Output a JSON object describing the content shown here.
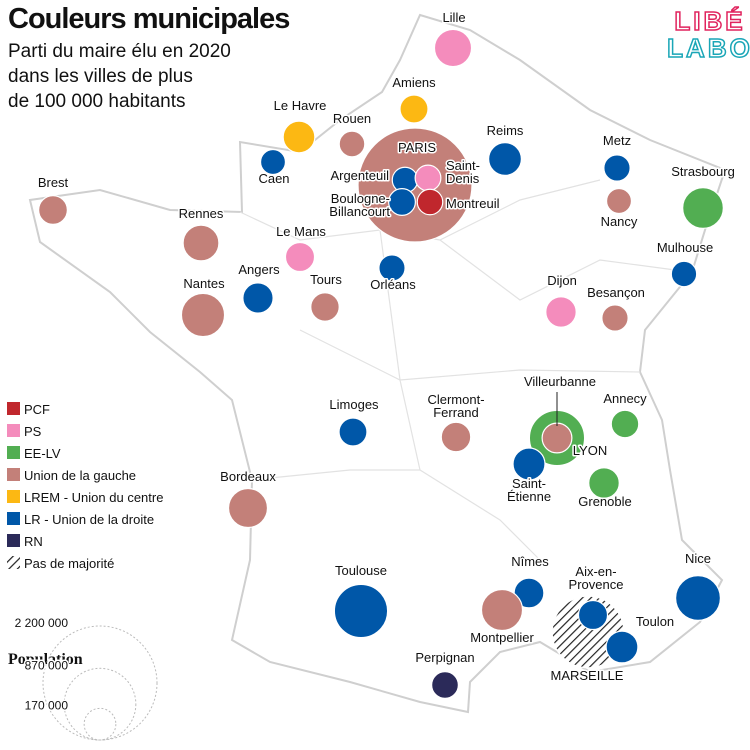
{
  "header": {
    "title": "Couleurs municipales",
    "subtitle": [
      "Parti du maire élu en 2020",
      "dans les villes de plus",
      "de 100 000 habitants"
    ],
    "logo": [
      "LIBÉ",
      "LABO"
    ]
  },
  "parties": [
    {
      "name": "PCF",
      "color": "#c0272d"
    },
    {
      "name": "PS",
      "color": "#f48cbc"
    },
    {
      "name": "EE-LV",
      "color": "#52ae52"
    },
    {
      "name": "Union de la gauche",
      "color": "#c38079"
    },
    {
      "name": "LREM - Union du centre",
      "color": "#fcb813"
    },
    {
      "name": "LR - Union de la droite",
      "color": "#0057a8"
    },
    {
      "name": "RN",
      "color": "#2b2a59"
    },
    {
      "name": "Pas de majorité",
      "color": "#222222",
      "pattern": "hatch"
    }
  ],
  "population_legend": {
    "title": "Population",
    "sizes": [
      {
        "value": 2200000,
        "label": "2 200 000"
      },
      {
        "value": 870000,
        "label": "870 000"
      },
      {
        "value": 170000,
        "label": "170 000"
      }
    ]
  },
  "cities": [
    {
      "label": [
        "PARIS"
      ],
      "party": 3,
      "population": 2200000
    },
    {
      "label": [
        "Lille"
      ],
      "party": 1,
      "population": 233000
    },
    {
      "label": [
        "Amiens"
      ],
      "party": 4,
      "population": 133000
    },
    {
      "label": [
        "Le Havre"
      ],
      "party": 4,
      "population": 170000
    },
    {
      "label": [
        "Rouen"
      ],
      "party": 3,
      "population": 111000
    },
    {
      "label": [
        "Caen"
      ],
      "party": 5,
      "population": 105000
    },
    {
      "label": [
        "Reims"
      ],
      "party": 5,
      "population": 182000
    },
    {
      "label": [
        "Metz"
      ],
      "party": 5,
      "population": 117000
    },
    {
      "label": [
        "Nancy"
      ],
      "party": 3,
      "population": 105000
    },
    {
      "label": [
        "Strasbourg"
      ],
      "party": 2,
      "population": 280000
    },
    {
      "label": [
        "Brest"
      ],
      "party": 3,
      "population": 140000
    },
    {
      "label": [
        "Rennes"
      ],
      "party": 3,
      "population": 217000
    },
    {
      "label": [
        "Le Mans"
      ],
      "party": 1,
      "population": 143000
    },
    {
      "label": [
        "Argenteuil"
      ],
      "party": 5,
      "population": 110000
    },
    {
      "label": [
        "Saint-",
        "Denis"
      ],
      "party": 1,
      "population": 112000
    },
    {
      "label": [
        "Boulogne-",
        "Billancourt"
      ],
      "party": 5,
      "population": 121000
    },
    {
      "label": [
        "Montreuil"
      ],
      "party": 0,
      "population": 110000
    },
    {
      "label": [
        "Orléans"
      ],
      "party": 5,
      "population": 116000
    },
    {
      "label": [
        "Angers"
      ],
      "party": 5,
      "population": 155000
    },
    {
      "label": [
        "Tours"
      ],
      "party": 3,
      "population": 137000
    },
    {
      "label": [
        "Nantes"
      ],
      "party": 3,
      "population": 315000
    },
    {
      "label": [
        "Mulhouse"
      ],
      "party": 5,
      "population": 109000
    },
    {
      "label": [
        "Dijon"
      ],
      "party": 1,
      "population": 157000
    },
    {
      "label": [
        "Besançon"
      ],
      "party": 3,
      "population": 117000
    },
    {
      "label": [
        "Limoges"
      ],
      "party": 5,
      "population": 132000
    },
    {
      "label": [
        "Clermont-",
        "Ferrand"
      ],
      "party": 3,
      "population": 147000
    },
    {
      "label": [
        "LYON"
      ],
      "party": 2,
      "population": 516000
    },
    {
      "label": [
        "Villeurbanne"
      ],
      "party": 3,
      "population": 150000
    },
    {
      "label": [
        "Annecy"
      ],
      "party": 2,
      "population": 128000
    },
    {
      "label": [
        "Saint-",
        "Étienne"
      ],
      "party": 5,
      "population": 173000
    },
    {
      "label": [
        "Grenoble"
      ],
      "party": 2,
      "population": 158000
    },
    {
      "label": [
        "Bordeaux"
      ],
      "party": 3,
      "population": 257000
    },
    {
      "label": [
        "Toulouse"
      ],
      "party": 5,
      "population": 480000
    },
    {
      "label": [
        "Nîmes"
      ],
      "party": 5,
      "population": 150000
    },
    {
      "label": [
        "Montpellier"
      ],
      "party": 3,
      "population": 285000
    },
    {
      "label": [
        "MARSEILLE"
      ],
      "party": 7,
      "population": 870000
    },
    {
      "label": [
        "Aix-en-",
        "Provence"
      ],
      "party": 5,
      "population": 143000
    },
    {
      "label": [
        "Toulon"
      ],
      "party": 5,
      "population": 171000
    },
    {
      "label": [
        "Nice"
      ],
      "party": 5,
      "population": 340000
    },
    {
      "label": [
        "Perpignan"
      ],
      "party": 6,
      "population": 121000
    }
  ]
}
